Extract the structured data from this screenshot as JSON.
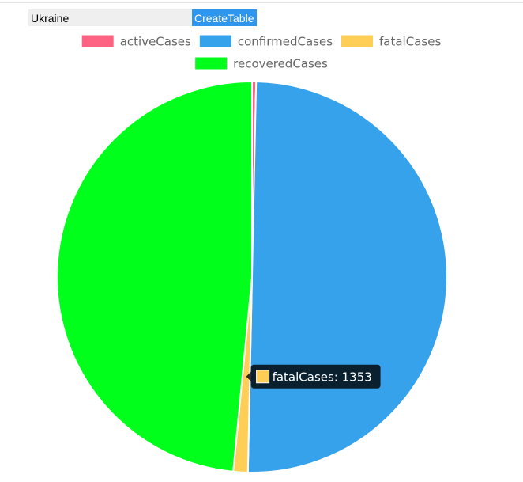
{
  "controls": {
    "country_value": "Ukraine",
    "create_label": "CreateTable"
  },
  "chart_data": {
    "type": "pie",
    "legend_position": "top",
    "series": [
      {
        "name": "activeCases",
        "value": 378,
        "color": "#ff6384"
      },
      {
        "name": "confirmedCases",
        "value": 56300,
        "color": "#36a2eb"
      },
      {
        "name": "fatalCases",
        "value": 1353,
        "color": "#ffce56"
      },
      {
        "name": "recoveredCases",
        "value": 54569,
        "color": "#00ff1a"
      }
    ],
    "tooltip": {
      "series": "fatalCases",
      "text": "fatalCases: 1353"
    }
  }
}
